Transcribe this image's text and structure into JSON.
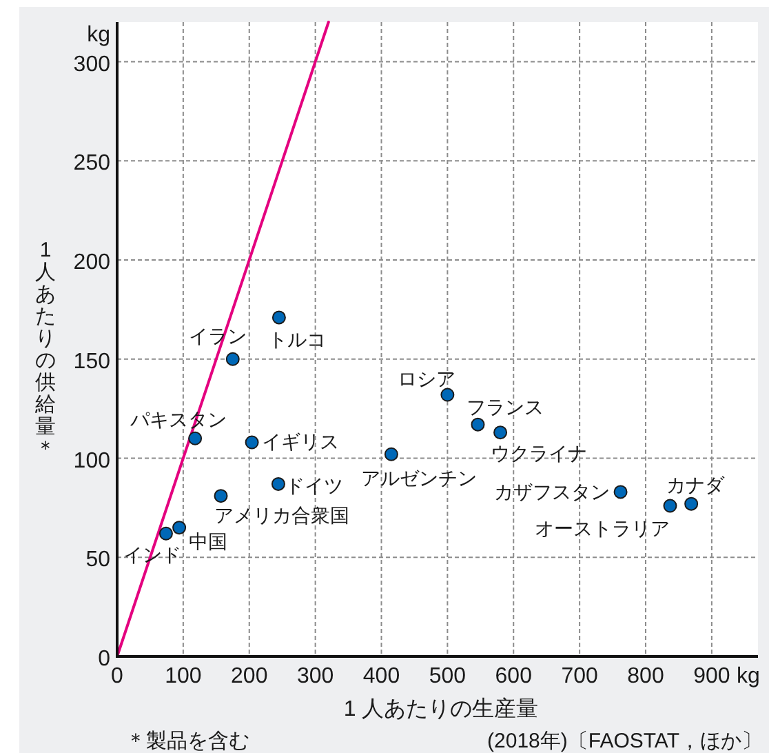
{
  "chart_data": {
    "type": "scatter",
    "xlabel": "1 人あたりの生産量",
    "ylabel": "1人あたりの供給量＊",
    "xlim": [
      0,
      970
    ],
    "ylim": [
      0,
      320
    ],
    "xticks": [
      0,
      100,
      200,
      300,
      400,
      500,
      600,
      700,
      800,
      900
    ],
    "yticks": [
      0,
      50,
      100,
      150,
      200,
      250,
      300
    ],
    "grid": true,
    "marker": "circle",
    "series": [
      {
        "type": "line",
        "color": "#e4007f",
        "marker": "none",
        "x": [
          0,
          320
        ],
        "values": [
          0,
          320
        ]
      },
      {
        "type": "scatter",
        "color": "#0068b7",
        "x": [
          175,
          245,
          118,
          204,
          244,
          157,
          74,
          94,
          415,
          500,
          546,
          580,
          762,
          837,
          869
        ],
        "values": [
          150,
          171,
          110,
          108,
          87,
          81,
          62,
          65,
          102,
          132,
          117,
          113,
          83,
          76,
          77
        ]
      }
    ],
    "annotations": [
      {
        "text": "イラン",
        "x": 175,
        "y": 150
      },
      {
        "text": "トルコ",
        "x": 245,
        "y": 171
      },
      {
        "text": "パキスタン",
        "x": 118,
        "y": 110
      },
      {
        "text": "イギリス",
        "x": 204,
        "y": 108
      },
      {
        "text": "ドイツ",
        "x": 244,
        "y": 87
      },
      {
        "text": "アメリカ合衆国",
        "x": 157,
        "y": 81
      },
      {
        "text": "インド",
        "x": 74,
        "y": 62
      },
      {
        "text": "中国",
        "x": 94,
        "y": 65
      },
      {
        "text": "アルゼンチン",
        "x": 415,
        "y": 102
      },
      {
        "text": "ロシア",
        "x": 500,
        "y": 132
      },
      {
        "text": "フランス",
        "x": 546,
        "y": 117
      },
      {
        "text": "ウクライナ",
        "x": 580,
        "y": 113
      },
      {
        "text": "カザフスタン",
        "x": 762,
        "y": 83
      },
      {
        "text": "オーストラリア",
        "x": 837,
        "y": 76
      },
      {
        "text": "カナダ",
        "x": 869,
        "y": 77
      },
      "kg",
      "kg",
      "＊製品を含む",
      "(2018年)〔FAOSTAT，ほか〕"
    ]
  }
}
